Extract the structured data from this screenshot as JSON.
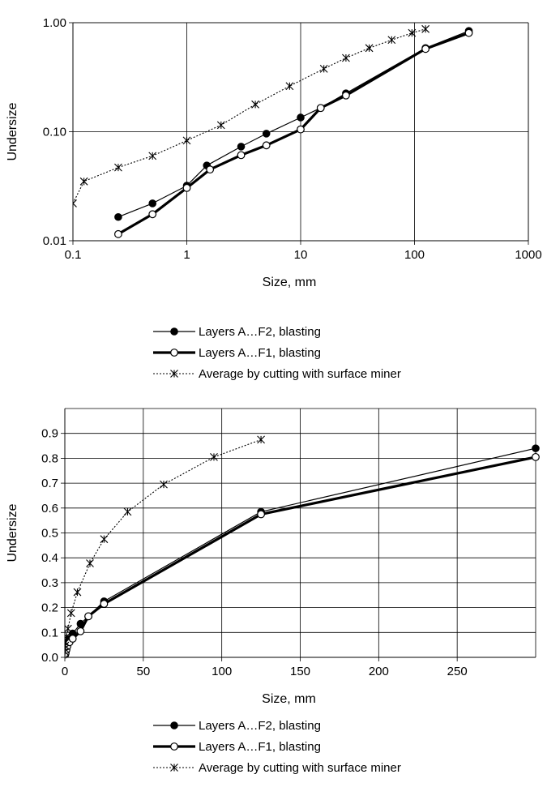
{
  "chart_data": [
    {
      "type": "line",
      "xscale": "log",
      "yscale": "log",
      "xlim": [
        0.1,
        1000
      ],
      "ylim": [
        0.01,
        1.0
      ],
      "xlabel": "Size, mm",
      "ylabel": "Undersize",
      "grid": true,
      "legend_position": "bottom",
      "x_ticks": [
        "0.1",
        "1",
        "10",
        "100",
        "1000"
      ],
      "y_ticks": [
        "0.01",
        "0.10",
        "1.00"
      ],
      "series": [
        {
          "name": "Layers A…F2, blasting",
          "x": [
            0.25,
            0.5,
            1,
            1.5,
            3,
            5,
            10,
            15,
            25,
            125,
            300
          ],
          "y": [
            0.0165,
            0.022,
            0.032,
            0.049,
            0.073,
            0.096,
            0.135,
            0.165,
            0.225,
            0.585,
            0.84
          ]
        },
        {
          "name": "Layers A…F1, blasting",
          "x": [
            0.25,
            0.5,
            1,
            1.6,
            3,
            5,
            10,
            15,
            25,
            125,
            300
          ],
          "y": [
            0.0115,
            0.0175,
            0.0305,
            0.045,
            0.061,
            0.075,
            0.105,
            0.165,
            0.215,
            0.575,
            0.805
          ]
        },
        {
          "name": "Average by cutting with surface miner",
          "x": [
            0.1,
            0.125,
            0.25,
            0.5,
            1,
            2,
            4,
            8,
            16,
            25,
            40,
            63,
            95,
            125
          ],
          "y": [
            0.022,
            0.035,
            0.047,
            0.06,
            0.083,
            0.115,
            0.178,
            0.262,
            0.378,
            0.475,
            0.585,
            0.695,
            0.805,
            0.875
          ]
        }
      ]
    },
    {
      "type": "line",
      "xscale": "linear",
      "yscale": "linear",
      "xlim": [
        0,
        300
      ],
      "ylim": [
        0,
        1.0
      ],
      "xlabel": "Size, mm",
      "ylabel": "Undersize",
      "grid": true,
      "legend_position": "bottom",
      "x_ticks": [
        "0",
        "50",
        "100",
        "150",
        "200",
        "250"
      ],
      "y_ticks": [
        "0.0",
        "0.1",
        "0.2",
        "0.3",
        "0.4",
        "0.5",
        "0.6",
        "0.7",
        "0.8",
        "0.9"
      ],
      "series": [
        {
          "name": "Layers A…F2, blasting",
          "x": [
            0.25,
            0.5,
            1,
            1.5,
            3,
            5,
            10,
            15,
            25,
            125,
            300
          ],
          "y": [
            0.0165,
            0.022,
            0.032,
            0.049,
            0.073,
            0.096,
            0.135,
            0.165,
            0.225,
            0.585,
            0.84
          ]
        },
        {
          "name": "Layers A…F1, blasting",
          "x": [
            0.25,
            0.5,
            1,
            1.6,
            3,
            5,
            10,
            15,
            25,
            125,
            300
          ],
          "y": [
            0.0115,
            0.0175,
            0.0305,
            0.045,
            0.061,
            0.075,
            0.105,
            0.165,
            0.215,
            0.575,
            0.805
          ]
        },
        {
          "name": "Average by cutting with surface miner",
          "x": [
            0.1,
            0.125,
            0.25,
            0.5,
            1,
            2,
            4,
            8,
            16,
            25,
            40,
            63,
            95,
            125
          ],
          "y": [
            0.022,
            0.035,
            0.047,
            0.06,
            0.083,
            0.115,
            0.178,
            0.262,
            0.378,
            0.475,
            0.585,
            0.695,
            0.805,
            0.875
          ]
        }
      ]
    }
  ]
}
